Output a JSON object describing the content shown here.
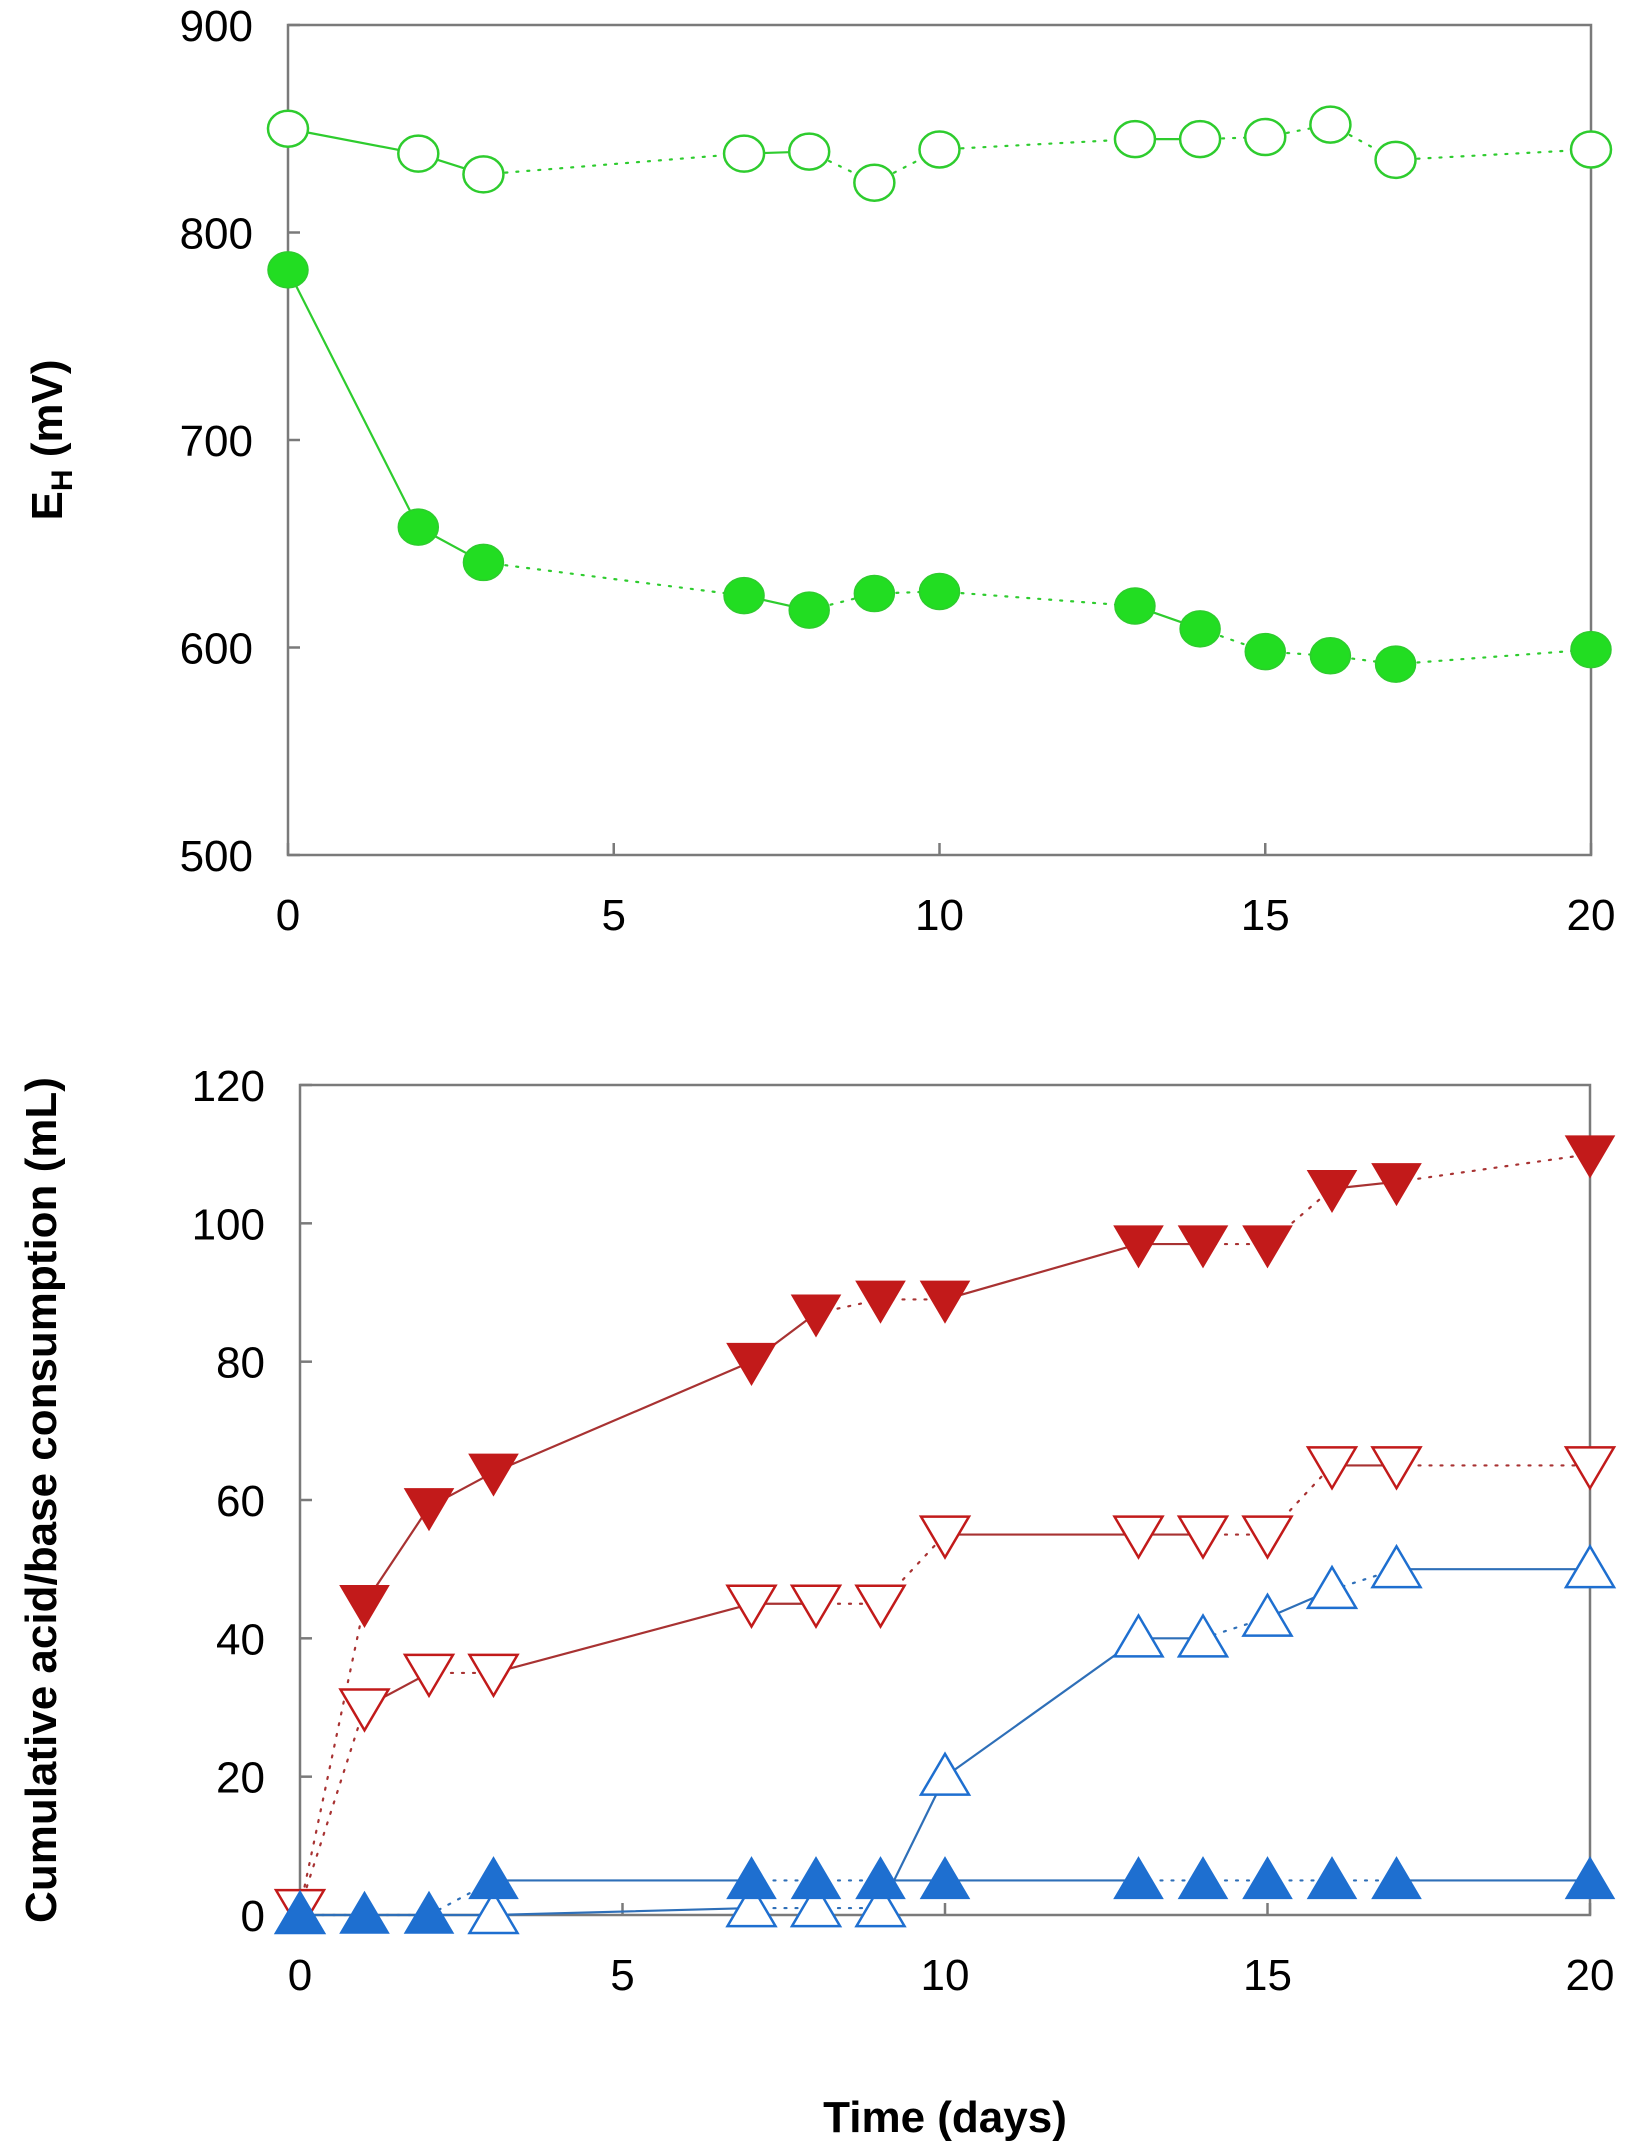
{
  "colors": {
    "green": "#2ecc2e",
    "green_fill": "#22dd22",
    "red": "#c21a1a",
    "red_line": "#a83232",
    "blue": "#1e6fd0",
    "blue_line": "#2e6fb8",
    "axis": "#7a7a7a"
  },
  "chart_data": [
    {
      "type": "line",
      "ylabel_main": "E",
      "ylabel_sub": "H",
      "ylabel_rest": " (mV)",
      "xlim": [
        0,
        20
      ],
      "ylim": [
        500,
        900
      ],
      "xticks": [
        "0",
        "5",
        "10",
        "15",
        "20"
      ],
      "yticks": [
        "500",
        "600",
        "700",
        "800",
        "900"
      ],
      "series": [
        {
          "name": "open-circle",
          "marker": "circle-open",
          "color": "green",
          "x": [
            0,
            2,
            3,
            7,
            8,
            9,
            10,
            13,
            14,
            15,
            16,
            17,
            20
          ],
          "y": [
            850,
            838,
            828,
            838,
            839,
            824,
            840,
            845,
            845,
            846,
            852,
            835,
            840
          ],
          "dotted_segments": [
            2,
            4,
            5,
            6,
            8,
            9,
            10,
            11
          ]
        },
        {
          "name": "filled-circle",
          "marker": "circle-filled",
          "color": "green",
          "x": [
            0,
            2,
            3,
            7,
            8,
            9,
            10,
            13,
            14,
            15,
            16,
            17,
            20
          ],
          "y": [
            782,
            658,
            641,
            625,
            618,
            626,
            627,
            620,
            609,
            598,
            596,
            592,
            599
          ],
          "dotted_segments": [
            2,
            4,
            5,
            6,
            8,
            9,
            10,
            11
          ]
        }
      ]
    },
    {
      "type": "line",
      "xlabel": "Time (days)",
      "ylabel": "Cumulative acid/base consumption (mL)",
      "xlim": [
        0,
        20
      ],
      "ylim": [
        0,
        120
      ],
      "xticks": [
        "0",
        "5",
        "10",
        "15",
        "20"
      ],
      "yticks": [
        "0",
        "20",
        "40",
        "60",
        "80",
        "100",
        "120"
      ],
      "series": [
        {
          "name": "filled-down-triangle",
          "marker": "triangle-down-filled",
          "color": "red",
          "x": [
            0,
            1,
            2,
            3,
            7,
            8,
            9,
            10,
            13,
            14,
            15,
            16,
            17,
            20
          ],
          "y": [
            1,
            45,
            59,
            64,
            80,
            87,
            89,
            89,
            97,
            97,
            97,
            105,
            106,
            110
          ],
          "dotted_segments": [
            0,
            5,
            6,
            9,
            10,
            12
          ]
        },
        {
          "name": "open-down-triangle",
          "marker": "triangle-down-open",
          "color": "red",
          "x": [
            0,
            1,
            2,
            3,
            7,
            8,
            9,
            10,
            13,
            14,
            15,
            16,
            17,
            20
          ],
          "y": [
            1,
            30,
            35,
            35,
            45,
            45,
            45,
            55,
            55,
            55,
            55,
            65,
            65,
            65
          ],
          "dotted_segments": [
            0,
            2,
            5,
            6,
            9,
            10,
            12
          ]
        },
        {
          "name": "open-up-triangle",
          "marker": "triangle-up-open",
          "color": "blue",
          "x": [
            0,
            3,
            7,
            8,
            9,
            10,
            13,
            14,
            15,
            16,
            17,
            20
          ],
          "y": [
            0,
            0,
            1,
            1,
            1,
            20,
            40,
            40,
            43,
            47,
            50,
            50
          ],
          "dotted_segments": [
            2,
            3,
            7,
            9
          ]
        },
        {
          "name": "filled-up-triangle",
          "marker": "triangle-up-filled",
          "color": "blue",
          "x": [
            0,
            1,
            2,
            3,
            7,
            8,
            9,
            10,
            13,
            14,
            15,
            16,
            17,
            20
          ],
          "y": [
            0,
            0,
            0,
            5,
            5,
            5,
            5,
            5,
            5,
            5,
            5,
            5,
            5,
            5
          ],
          "dotted_segments": [
            0,
            1,
            2,
            4,
            5,
            8,
            9,
            10,
            11
          ]
        }
      ]
    }
  ]
}
